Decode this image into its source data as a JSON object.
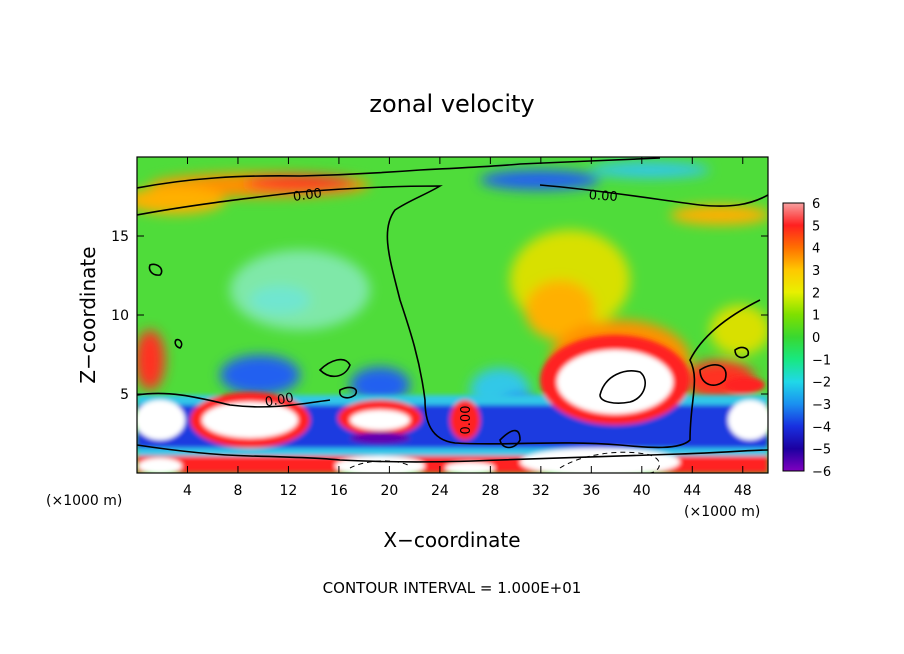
{
  "chart_data": {
    "type": "heatmap",
    "title": "zonal velocity",
    "xlabel": "X−coordinate",
    "ylabel": "Z−coordinate",
    "x_unit_left": "(×1000 m)",
    "x_unit_right": "(×1000 m)",
    "xlim": [
      0,
      50
    ],
    "ylim": [
      0,
      20
    ],
    "xticks": [
      4,
      8,
      12,
      16,
      20,
      24,
      28,
      32,
      36,
      40,
      44,
      48
    ],
    "yticks": [
      5,
      10,
      15
    ],
    "footer": "CONTOUR INTERVAL = 1.000E+01",
    "contour_labels": [
      {
        "text": "0.00",
        "x": 13.5,
        "y": 17.3
      },
      {
        "text": "0.00",
        "x": 36.5,
        "y": 17.3
      },
      {
        "text": "0.00",
        "x": 11.0,
        "y": 4.6
      },
      {
        "text": "0.00",
        "x": 26.0,
        "y": 2.8
      }
    ],
    "colorbar": {
      "ticks": [
        "6",
        "5",
        "4",
        "3",
        "2",
        "1",
        "0",
        "−1",
        "−2",
        "−3",
        "−4",
        "−5",
        "−6"
      ],
      "colors": [
        "#f7a0a0",
        "#ff2020",
        "#ff7000",
        "#ffc800",
        "#e8f000",
        "#7ee000",
        "#39d830",
        "#18e880",
        "#20d8e8",
        "#1a90f0",
        "#1830e0",
        "#1c00a0",
        "#8000c0"
      ]
    }
  }
}
